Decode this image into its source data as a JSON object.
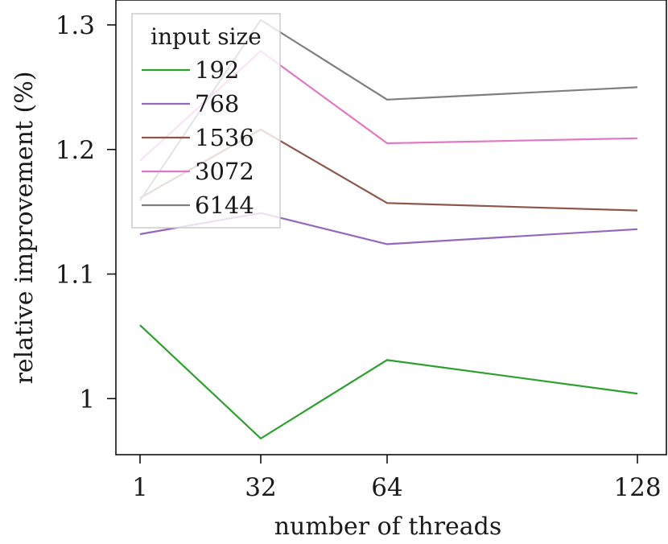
{
  "chart_data": {
    "type": "line",
    "xlabel": "number of threads",
    "ylabel": "relative improvement (%)",
    "x_categories": [
      "1",
      "32",
      "64",
      "128"
    ],
    "x": [
      1,
      32,
      64,
      128
    ],
    "ylim": [
      0.955,
      1.32
    ],
    "y_ticks": [
      1.0,
      1.1,
      1.2,
      1.3
    ],
    "y_tick_labels": [
      "1",
      "1.1",
      "1.2",
      "1.3"
    ],
    "grid": false,
    "legend": {
      "title": "input size",
      "position": "top-left"
    },
    "series": [
      {
        "name": "192",
        "color": "#2ca02c",
        "values": [
          1.059,
          0.968,
          1.031,
          1.004
        ]
      },
      {
        "name": "768",
        "color": "#9467bd",
        "values": [
          1.132,
          1.149,
          1.124,
          1.136
        ]
      },
      {
        "name": "1536",
        "color": "#8c564b",
        "values": [
          1.161,
          1.216,
          1.157,
          1.151
        ]
      },
      {
        "name": "3072",
        "color": "#e377c2",
        "values": [
          1.191,
          1.279,
          1.205,
          1.209
        ]
      },
      {
        "name": "6144",
        "color": "#7f7f7f",
        "values": [
          1.159,
          1.304,
          1.24,
          1.25
        ]
      }
    ]
  }
}
